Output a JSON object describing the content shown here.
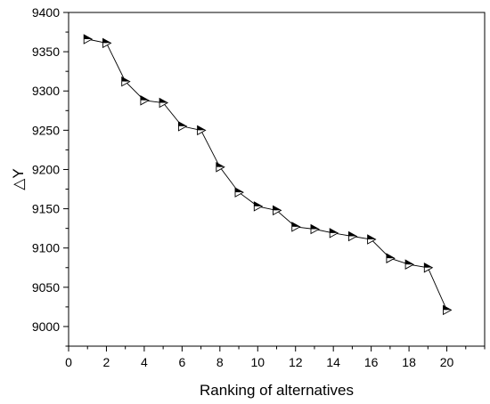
{
  "chart_data": {
    "type": "line",
    "xlabel": "Ranking of alternatives",
    "ylabel": "△Y",
    "xlim": [
      0,
      22
    ],
    "ylim": [
      8975,
      9400
    ],
    "xticks": [
      0,
      2,
      4,
      6,
      8,
      10,
      12,
      14,
      16,
      18,
      20
    ],
    "yticks": [
      9000,
      9050,
      9100,
      9150,
      9200,
      9250,
      9300,
      9350,
      9400
    ],
    "grid": false,
    "marker": "half-filled right-pointing triangle",
    "series": [
      {
        "x": [
          1,
          2,
          3,
          4,
          5,
          6,
          7,
          8,
          9,
          10,
          11,
          12,
          13,
          14,
          15,
          16,
          17,
          18,
          19,
          20
        ],
        "y": [
          9366,
          9361,
          9312,
          9288,
          9285,
          9255,
          9250,
          9203,
          9171,
          9153,
          9148,
          9127,
          9124,
          9119,
          9115,
          9111,
          9087,
          9079,
          9075,
          9021
        ]
      }
    ]
  }
}
